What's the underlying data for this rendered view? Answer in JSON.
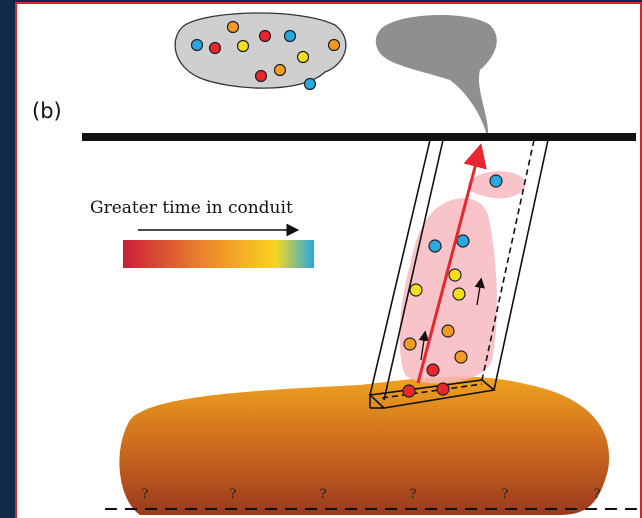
{
  "panel_label": "(b)",
  "legend": {
    "label": "Greater time in conduit"
  },
  "unknown_marks": [
    "?",
    "?",
    "?",
    "?",
    "?",
    "?"
  ]
}
